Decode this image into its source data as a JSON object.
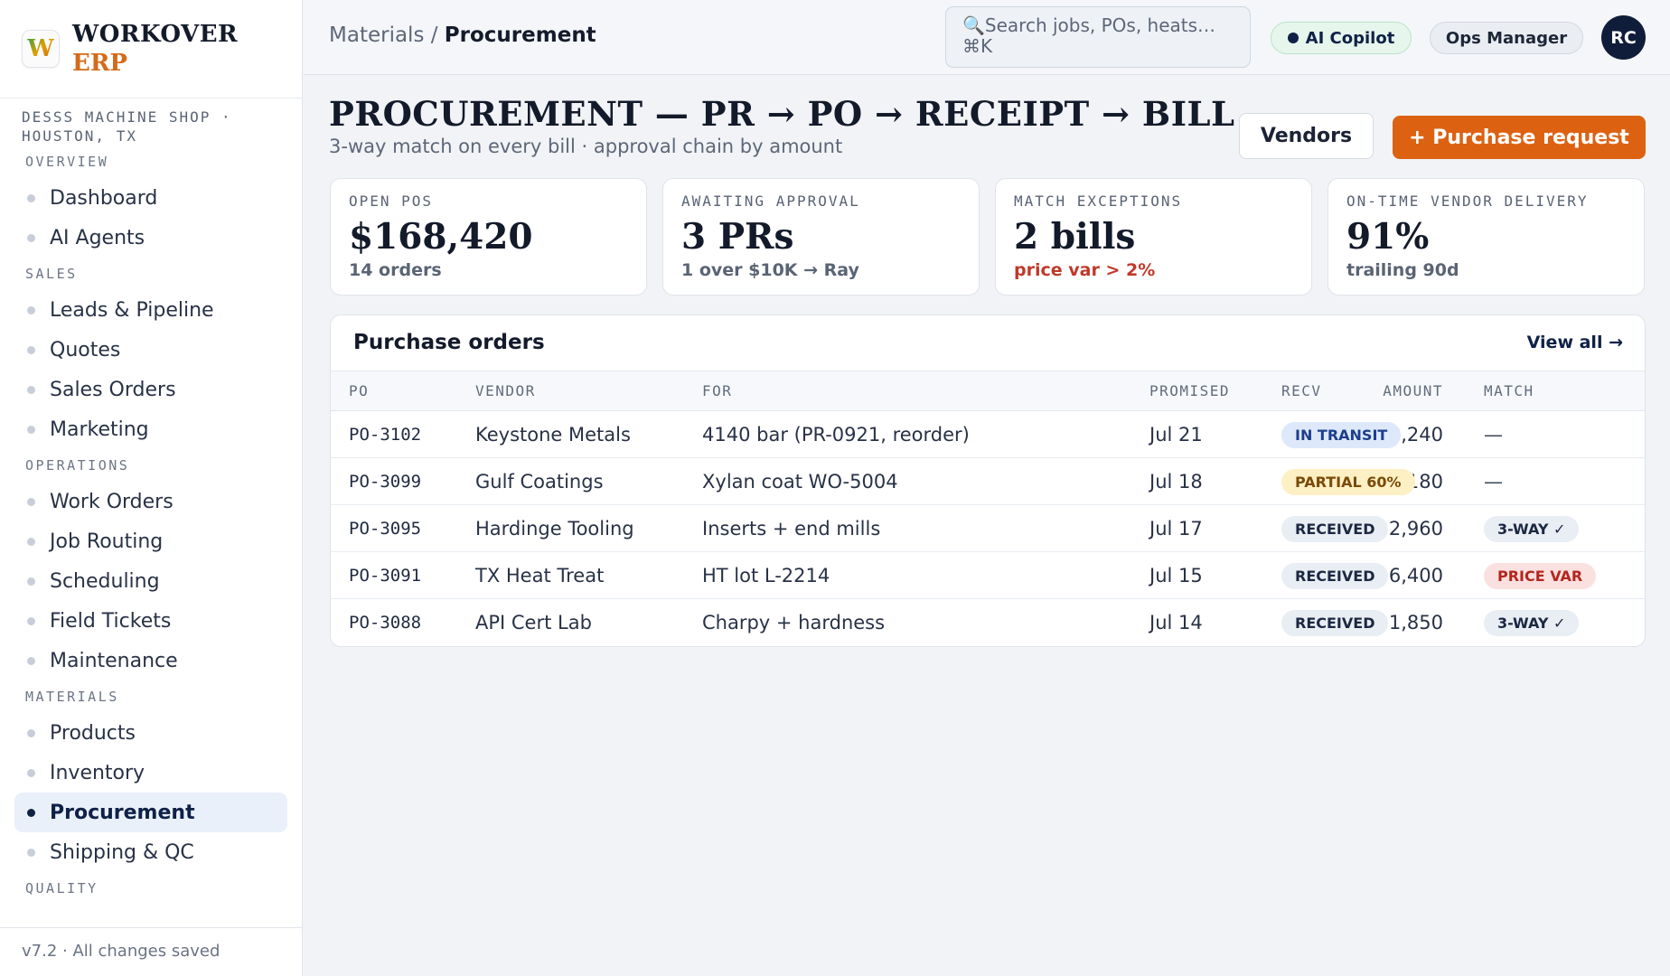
{
  "brand": {
    "logo_letter": "W",
    "name_line1": "WORKOVER",
    "name_line2": "ERP",
    "shop": "DESSS MACHINE SHOP · HOUSTON, TX"
  },
  "sidebar": {
    "sections": [
      {
        "title": "OVERVIEW",
        "items": [
          "Dashboard",
          "AI Agents"
        ]
      },
      {
        "title": "SALES",
        "items": [
          "Leads & Pipeline",
          "Quotes",
          "Sales Orders",
          "Marketing"
        ]
      },
      {
        "title": "OPERATIONS",
        "items": [
          "Work Orders",
          "Job Routing",
          "Scheduling",
          "Field Tickets",
          "Maintenance"
        ]
      },
      {
        "title": "MATERIALS",
        "items": [
          "Products",
          "Inventory",
          "Procurement",
          "Shipping & QC"
        ]
      },
      {
        "title": "QUALITY",
        "items": []
      }
    ],
    "active_item": "Procurement",
    "footer": "v7.2 · All changes saved"
  },
  "topbar": {
    "breadcrumb_parent": "Materials /",
    "breadcrumb_current": "Procurement",
    "search_placeholder": "Search jobs, POs, heats…",
    "search_shortcut": "⌘K",
    "copilot_label": "AI Copilot",
    "role_label": "Ops Manager",
    "avatar_initials": "RC"
  },
  "page": {
    "title": "PROCUREMENT — PR → PO → RECEIPT → BILL",
    "subtitle": "3-way match on every bill · approval chain by amount",
    "vendors_button": "Vendors",
    "purchase_request_button": "+ Purchase request"
  },
  "kpis": [
    {
      "label": "OPEN POS",
      "value": "$168,420",
      "sub": "14 orders",
      "sub_alert": false
    },
    {
      "label": "AWAITING APPROVAL",
      "value": "3 PRs",
      "sub": "1 over $10K → Ray",
      "sub_alert": false
    },
    {
      "label": "MATCH EXCEPTIONS",
      "value": "2 bills",
      "sub": "price var > 2%",
      "sub_alert": true
    },
    {
      "label": "ON-TIME VENDOR DELIVERY",
      "value": "91%",
      "sub": "trailing 90d",
      "sub_alert": false
    }
  ],
  "purchase_orders": {
    "title": "Purchase orders",
    "view_all": "View all →",
    "columns": [
      "PO",
      "VENDOR",
      "FOR",
      "AMOUNT",
      "PROMISED",
      "RECV",
      "MATCH"
    ],
    "rows": [
      {
        "po": "PO-3102",
        "vendor": "Keystone Metals",
        "for": "4140 bar (PR-0921, reorder)",
        "amount": "$18,240",
        "promised": "Jul 21",
        "recv": "IN TRANSIT",
        "recv_kind": "transit",
        "match": "—",
        "match_kind": "none"
      },
      {
        "po": "PO-3099",
        "vendor": "Gulf Coatings",
        "for": "Xylan coat WO-5004",
        "amount": "$4,180",
        "promised": "Jul 18",
        "recv": "PARTIAL 60%",
        "recv_kind": "partial",
        "match": "—",
        "match_kind": "none"
      },
      {
        "po": "PO-3095",
        "vendor": "Hardinge Tooling",
        "for": "Inserts + end mills",
        "amount": "$2,960",
        "promised": "Jul 17",
        "recv": "RECEIVED",
        "recv_kind": "received",
        "match": "3-WAY ✓",
        "match_kind": "3way"
      },
      {
        "po": "PO-3091",
        "vendor": "TX Heat Treat",
        "for": "HT lot L-2214",
        "amount": "$6,400",
        "promised": "Jul 15",
        "recv": "RECEIVED",
        "recv_kind": "received",
        "match": "PRICE VAR",
        "match_kind": "pricevar"
      },
      {
        "po": "PO-3088",
        "vendor": "API Cert Lab",
        "for": "Charpy + hardness",
        "amount": "$1,850",
        "promised": "Jul 14",
        "recv": "RECEIVED",
        "recv_kind": "received",
        "match": "3-WAY ✓",
        "match_kind": "3way"
      }
    ]
  },
  "colors": {
    "accent": "#dc6212",
    "navy": "#0f2147",
    "alert": "#c0392b"
  }
}
